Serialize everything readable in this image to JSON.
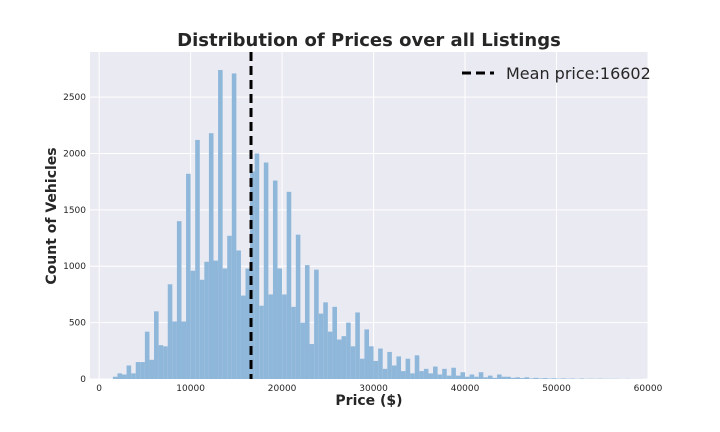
{
  "chart_data": {
    "type": "histogram",
    "title": "Distribution of Prices over all Listings",
    "xlabel": "Price ($)",
    "ylabel": "Count of Vehicles",
    "xlim": [
      -1000,
      60000
    ],
    "ylim": [
      0,
      2900
    ],
    "xticks": [
      0,
      10000,
      20000,
      30000,
      40000,
      50000,
      60000
    ],
    "yticks": [
      0,
      500,
      1000,
      1500,
      2000,
      2500
    ],
    "bin_start": 1500,
    "bin_width": 500,
    "counts": [
      20,
      50,
      40,
      120,
      50,
      150,
      150,
      420,
      170,
      600,
      300,
      290,
      840,
      510,
      1400,
      510,
      1820,
      960,
      2120,
      880,
      1040,
      2180,
      1050,
      2740,
      980,
      1270,
      2710,
      1140,
      740,
      980,
      1840,
      2000,
      650,
      1920,
      750,
      1760,
      980,
      750,
      1660,
      640,
      1280,
      500,
      1010,
      310,
      970,
      580,
      680,
      420,
      640,
      350,
      380,
      500,
      290,
      590,
      180,
      440,
      290,
      160,
      270,
      90,
      240,
      120,
      200,
      70,
      180,
      50,
      210,
      70,
      90,
      50,
      110,
      40,
      90,
      30,
      100,
      30,
      60,
      20,
      40,
      20,
      60,
      15,
      30,
      10,
      40,
      20,
      20,
      10,
      15,
      8,
      15,
      5,
      10,
      5,
      8,
      4,
      6,
      3,
      5,
      3,
      4,
      2,
      4,
      2,
      3,
      2,
      3,
      2,
      2,
      2,
      2,
      1,
      2,
      1,
      1,
      1
    ],
    "bar_color": "#8fb7da",
    "mean": 16602,
    "mean_line": {
      "color": "#000000",
      "style": "dashed"
    },
    "legend": {
      "label": "Mean price:16602",
      "position": "top-right"
    },
    "grid": true,
    "background_color": "#eaeaf2"
  }
}
